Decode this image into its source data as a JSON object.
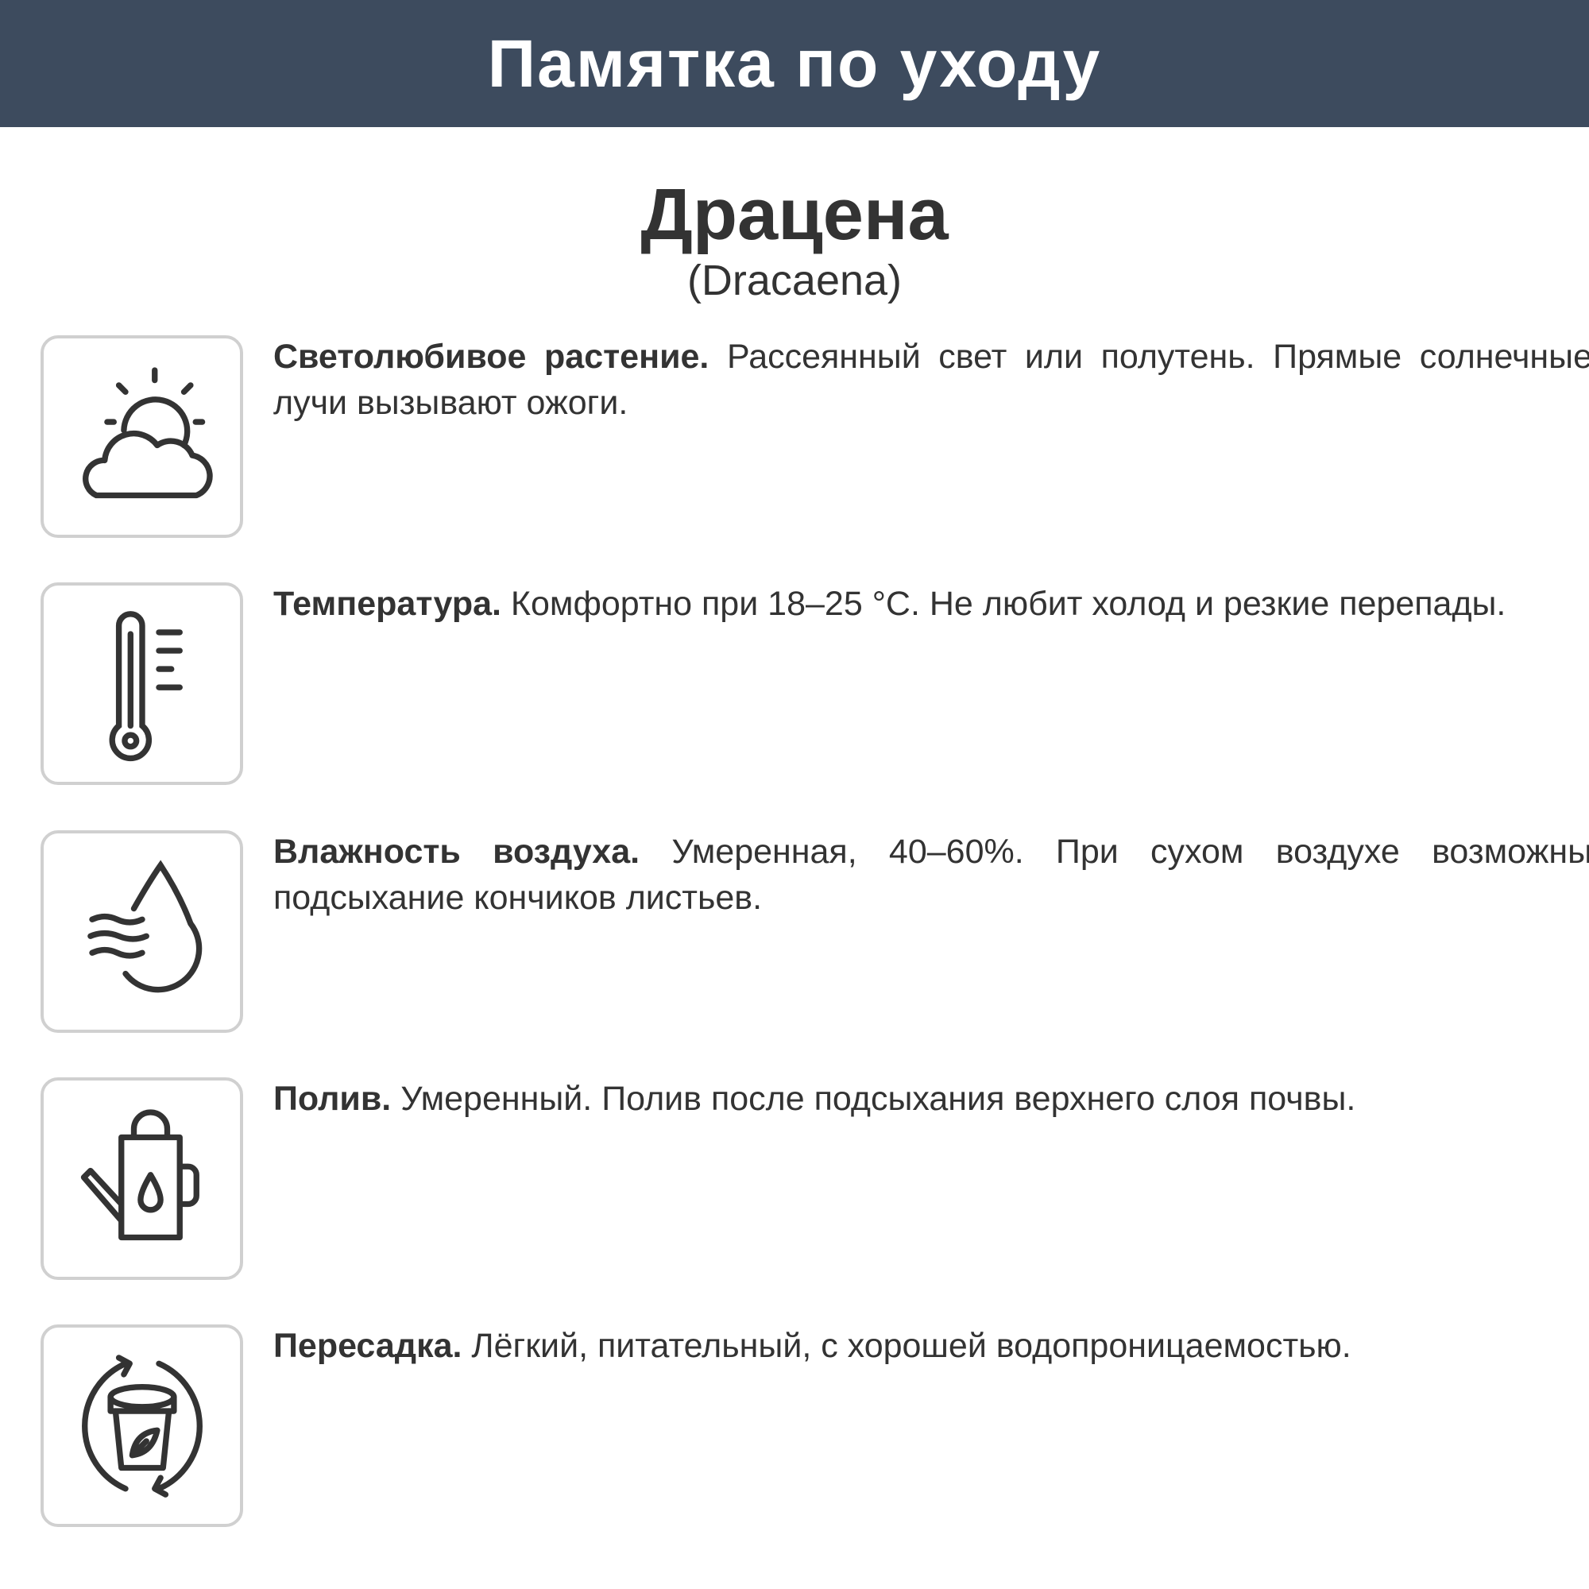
{
  "header": {
    "title": "Памятка по уходу",
    "background": "#3d4b5e"
  },
  "plant": {
    "name": "Драцена",
    "latin": "(Dracaena)"
  },
  "items": [
    {
      "icon": "sun-cloud-icon",
      "title": "Светолюбивое растение.",
      "text": "Рассеянный свет или полутень. Прямые солнечные лучи вызывают ожоги."
    },
    {
      "icon": "thermometer-icon",
      "title": "Температура.",
      "text": "Комфортно при 18–25 °C. Не любит холод и резкие перепады."
    },
    {
      "icon": "humidity-drop-icon",
      "title": "Влажность воздуха.",
      "text": "Умеренная, 40–60%. При сухом воздухе возможны подсыхание кончиков листьев."
    },
    {
      "icon": "watering-can-icon",
      "title": "Полив.",
      "text": "Умеренный. Полив после подсыхания верхнего слоя почвы."
    },
    {
      "icon": "repot-icon",
      "title": "Пересадка.",
      "text": "Лёгкий, питательный, с хорошей водопроницаемостью."
    }
  ]
}
